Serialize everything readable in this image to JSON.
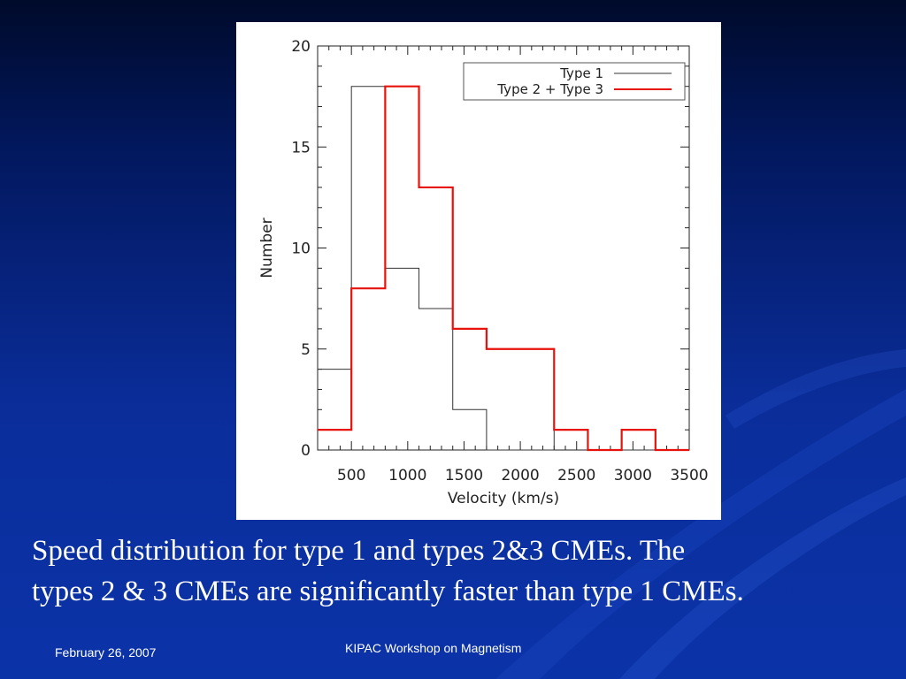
{
  "slide": {
    "caption_line1": "Speed distribution for type 1 and types 2&3 CMEs. The",
    "caption_line2": "types 2 & 3 CMEs are significantly faster than type 1 CMEs.",
    "footer_date": "February 26, 2007",
    "footer_title": "KIPAC Workshop on Magnetism"
  },
  "colors": {
    "background_top": "#000a2a",
    "background_bottom": "#0b33a8",
    "series_type1": "#333333",
    "series_type23": "#e8120c"
  },
  "chart_data": {
    "type": "histogram",
    "xlabel": "Velocity (km/s)",
    "ylabel": "Number",
    "xlim": [
      200,
      3500
    ],
    "ylim": [
      0,
      20
    ],
    "xticks": [
      500,
      1000,
      1500,
      2000,
      2500,
      3000,
      3500
    ],
    "xtick_labels": [
      "500",
      "1000",
      "1500",
      "2000",
      "2500",
      "3000",
      "3500"
    ],
    "yticks": [
      0,
      5,
      10,
      15,
      20
    ],
    "ytick_labels": [
      "0",
      "5",
      "10",
      "15",
      "20"
    ],
    "legend_position": "top-right",
    "bin_edges": [
      200,
      500,
      800,
      1100,
      1400,
      1700,
      2000,
      2300,
      2600,
      2900,
      3200,
      3500
    ],
    "series": [
      {
        "name": "Type 1",
        "color": "#333333",
        "values": [
          4,
          18,
          9,
          7,
          2,
          0,
          0,
          1,
          0,
          0,
          0
        ]
      },
      {
        "name": "Type 2 + Type 3",
        "color": "#e8120c",
        "values": [
          1,
          8,
          18,
          13,
          6,
          5,
          5,
          1,
          0,
          1,
          0
        ]
      }
    ]
  }
}
